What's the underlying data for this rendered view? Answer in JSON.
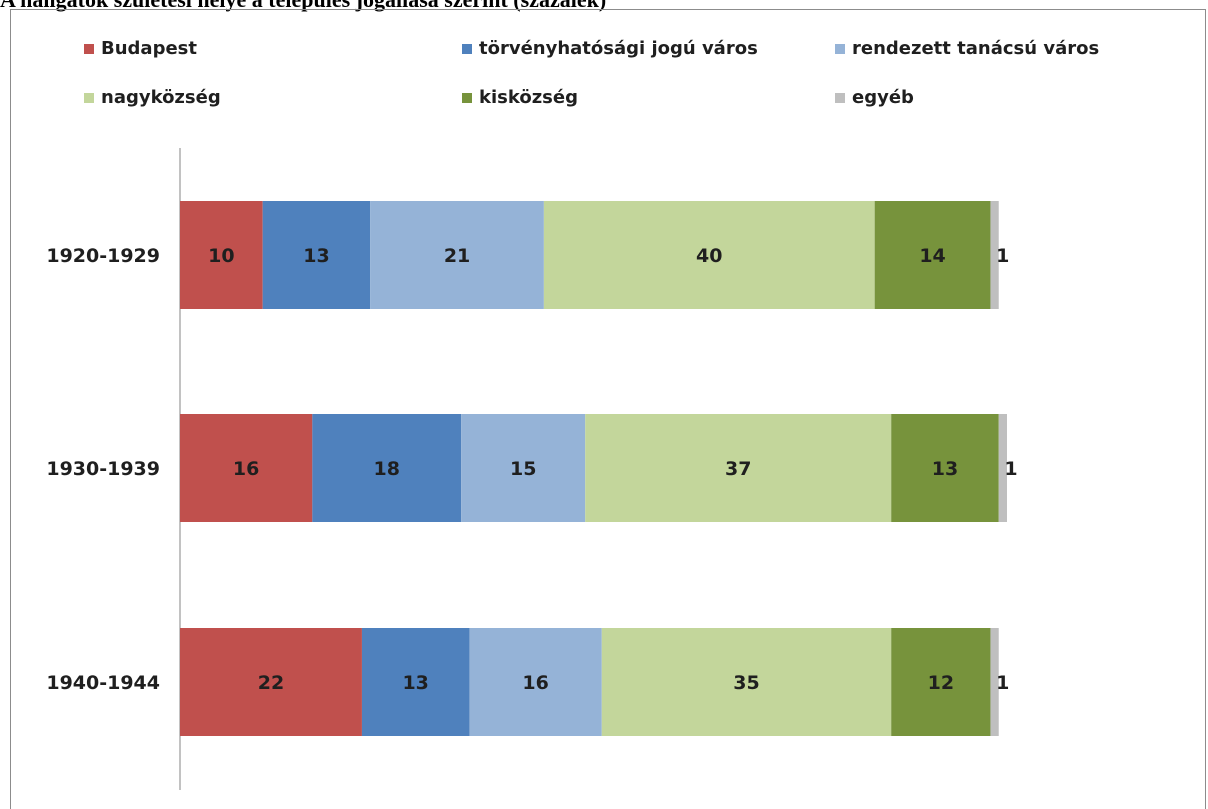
{
  "page": {
    "title": "A hallgatók születési helye a település jogállása szerint (százalék)"
  },
  "chart_data": {
    "type": "bar",
    "orientation": "horizontal",
    "stacked": true,
    "title": "",
    "xlabel": "",
    "ylabel": "",
    "xlim": [
      0,
      100
    ],
    "grid": false,
    "legend_position": "top",
    "categories": [
      "1920-1929",
      "1930-1939",
      "1940-1944"
    ],
    "series": [
      {
        "name": "Budapest",
        "color": "#c0504d",
        "values": [
          10,
          16,
          22
        ]
      },
      {
        "name": "törvényhatósági jogú város",
        "color": "#4f81bd",
        "values": [
          13,
          18,
          13
        ]
      },
      {
        "name": "rendezett tanácsú város",
        "color": "#95b3d7",
        "values": [
          21,
          15,
          16
        ]
      },
      {
        "name": "nagyközség",
        "color": "#c3d69b",
        "values": [
          40,
          37,
          35
        ]
      },
      {
        "name": "kisközség",
        "color": "#77933c",
        "values": [
          14,
          13,
          12
        ]
      },
      {
        "name": "egyéb",
        "color": "#bfbfbf",
        "values": [
          1,
          1,
          1
        ]
      }
    ]
  }
}
